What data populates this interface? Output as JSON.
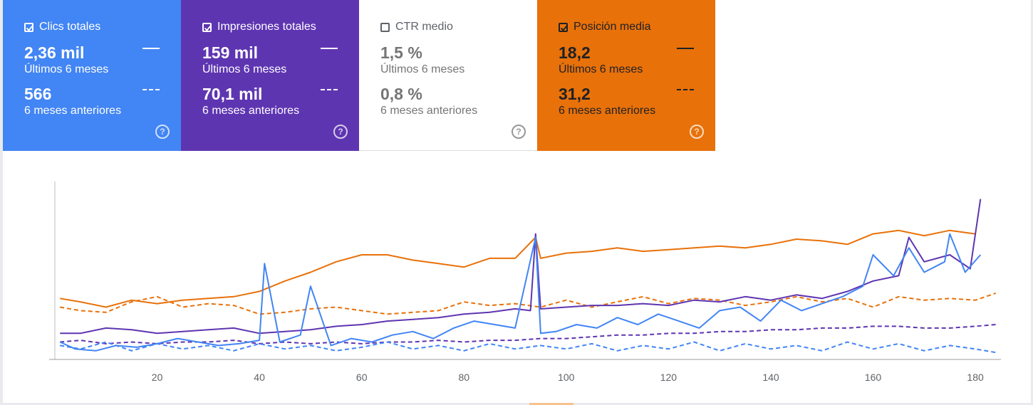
{
  "cards": [
    {
      "title": "Clics totales",
      "checked": true,
      "value_recent": "2,36 mil",
      "label_recent": "Últimos 6 meses",
      "value_prev": "566",
      "label_prev": "6 meses anteriores",
      "help_icon": "?"
    },
    {
      "title": "Impresiones totales",
      "checked": true,
      "value_recent": "159 mil",
      "label_recent": "Últimos 6 meses",
      "value_prev": "70,1 mil",
      "label_prev": "6 meses anteriores",
      "help_icon": "?"
    },
    {
      "title": "CTR medio",
      "checked": false,
      "value_recent": "1,5 %",
      "label_recent": "Últimos 6 meses",
      "value_prev": "0,8 %",
      "label_prev": "6 meses anteriores",
      "help_icon": "?"
    },
    {
      "title": "Posición media",
      "checked": true,
      "value_recent": "18,2",
      "label_recent": "Últimos 6 meses",
      "value_prev": "31,2",
      "label_prev": "6 meses anteriores",
      "help_icon": "?"
    }
  ],
  "colors": {
    "clicks": "#4285f4",
    "impressions": "#5e35b1",
    "ctr": "#00897b",
    "position": "#e8710a"
  },
  "chart_data": {
    "type": "line",
    "x_ticks": [
      20,
      40,
      60,
      80,
      100,
      120,
      140,
      160,
      180
    ],
    "xlim": [
      0,
      185
    ],
    "ylim": [
      0,
      100
    ],
    "series": [
      {
        "key": "position",
        "period": "recent",
        "style": "solid",
        "x": [
          1,
          5,
          10,
          15,
          20,
          25,
          30,
          35,
          40,
          45,
          50,
          55,
          60,
          65,
          70,
          75,
          80,
          85,
          90,
          94,
          95,
          100,
          105,
          110,
          115,
          120,
          125,
          130,
          135,
          140,
          145,
          150,
          155,
          160,
          165,
          170,
          175,
          180
        ],
        "y": [
          35,
          33,
          30,
          34,
          32,
          34,
          35,
          36,
          39,
          45,
          50,
          56,
          60,
          60,
          57,
          55,
          53,
          58,
          58,
          70,
          58,
          61,
          62,
          64,
          62,
          63,
          64,
          65,
          64,
          66,
          69,
          68,
          66,
          72,
          74,
          71,
          74,
          72
        ]
      },
      {
        "key": "position",
        "period": "previous",
        "style": "dashed",
        "x": [
          1,
          5,
          10,
          15,
          20,
          25,
          30,
          35,
          40,
          45,
          50,
          55,
          60,
          65,
          70,
          75,
          80,
          85,
          90,
          95,
          100,
          105,
          110,
          115,
          120,
          125,
          130,
          135,
          140,
          145,
          150,
          155,
          160,
          165,
          170,
          175,
          180,
          184
        ],
        "y": [
          30,
          28,
          27,
          33,
          36,
          30,
          32,
          31,
          26,
          27,
          29,
          30,
          28,
          26,
          27,
          28,
          33,
          31,
          32,
          30,
          34,
          30,
          33,
          36,
          32,
          35,
          34,
          31,
          33,
          36,
          33,
          35,
          30,
          36,
          34,
          35,
          34,
          38
        ]
      },
      {
        "key": "impressions",
        "period": "recent",
        "style": "solid",
        "x": [
          1,
          5,
          10,
          15,
          20,
          25,
          30,
          35,
          40,
          45,
          50,
          55,
          60,
          65,
          70,
          75,
          80,
          85,
          90,
          93,
          94,
          95,
          100,
          105,
          110,
          115,
          120,
          125,
          130,
          135,
          140,
          145,
          150,
          155,
          160,
          165,
          167,
          170,
          175,
          179,
          181
        ],
        "y": [
          15,
          15,
          18,
          17,
          15,
          16,
          17,
          18,
          15,
          16,
          17,
          19,
          20,
          22,
          23,
          24,
          26,
          27,
          29,
          28,
          72,
          29,
          30,
          31,
          31,
          32,
          31,
          34,
          33,
          36,
          34,
          37,
          35,
          39,
          45,
          48,
          70,
          56,
          60,
          52,
          92
        ]
      },
      {
        "key": "impressions",
        "period": "previous",
        "style": "dashed",
        "x": [
          1,
          5,
          10,
          15,
          20,
          25,
          30,
          35,
          40,
          45,
          50,
          55,
          60,
          65,
          70,
          75,
          80,
          85,
          90,
          95,
          100,
          105,
          110,
          115,
          120,
          125,
          130,
          135,
          140,
          145,
          150,
          155,
          160,
          165,
          170,
          175,
          180,
          184
        ],
        "y": [
          10,
          11,
          9,
          10,
          9,
          10,
          10,
          11,
          9,
          10,
          9,
          10,
          9,
          10,
          10,
          11,
          10,
          11,
          11,
          12,
          12,
          13,
          14,
          14,
          15,
          15,
          16,
          16,
          17,
          17,
          18,
          18,
          19,
          19,
          18,
          18,
          19,
          20
        ]
      },
      {
        "key": "clicks",
        "period": "recent",
        "style": "solid",
        "x": [
          1,
          4,
          8,
          12,
          16,
          20,
          24,
          28,
          32,
          36,
          40,
          41,
          44,
          48,
          50,
          54,
          58,
          62,
          66,
          70,
          74,
          78,
          82,
          86,
          90,
          94,
          95,
          98,
          102,
          106,
          110,
          114,
          118,
          122,
          126,
          130,
          134,
          138,
          142,
          146,
          150,
          154,
          158,
          160,
          164,
          167,
          170,
          174,
          175,
          178,
          181
        ],
        "y": [
          10,
          6,
          5,
          8,
          7,
          9,
          12,
          10,
          8,
          9,
          11,
          55,
          10,
          14,
          42,
          8,
          12,
          10,
          14,
          16,
          12,
          18,
          22,
          20,
          18,
          70,
          15,
          16,
          20,
          18,
          24,
          20,
          26,
          22,
          18,
          28,
          30,
          22,
          34,
          28,
          32,
          36,
          42,
          60,
          48,
          64,
          50,
          56,
          72,
          50,
          60
        ]
      },
      {
        "key": "clicks",
        "period": "previous",
        "style": "dashed",
        "x": [
          1,
          5,
          10,
          15,
          20,
          25,
          30,
          35,
          40,
          45,
          50,
          55,
          60,
          65,
          70,
          75,
          80,
          85,
          90,
          95,
          100,
          105,
          110,
          115,
          120,
          125,
          130,
          135,
          140,
          145,
          150,
          155,
          160,
          165,
          170,
          175,
          180,
          184
        ],
        "y": [
          8,
          6,
          10,
          5,
          9,
          6,
          8,
          5,
          9,
          6,
          8,
          5,
          7,
          10,
          6,
          8,
          5,
          9,
          6,
          8,
          6,
          9,
          5,
          8,
          6,
          10,
          5,
          9,
          6,
          8,
          5,
          10,
          6,
          9,
          5,
          8,
          6,
          4
        ]
      }
    ]
  }
}
